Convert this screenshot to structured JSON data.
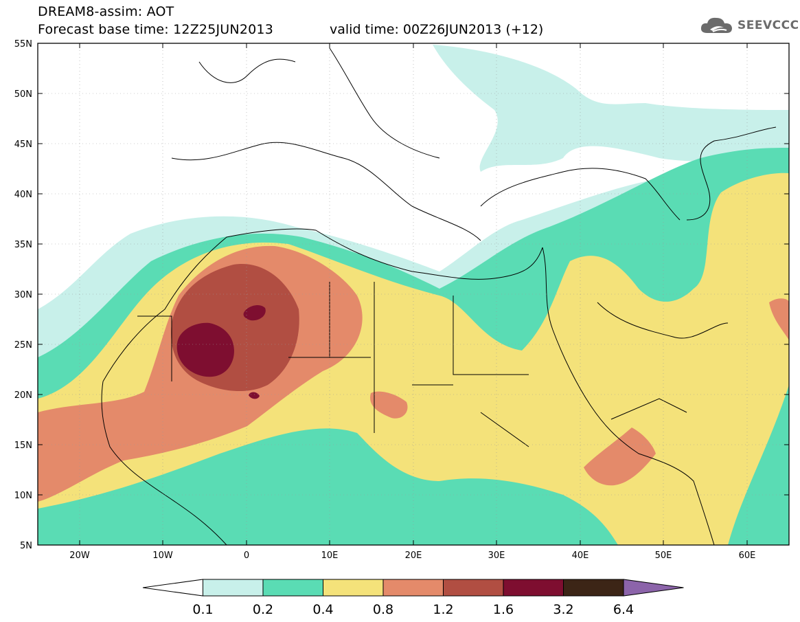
{
  "header": {
    "title": "DREAM8-assim: AOT",
    "base_time": "Forecast base time: 12Z25JUN2013",
    "valid_time": "valid time: 00Z26JUN2013 (+12)",
    "logo_text": "SEEVCCC"
  },
  "map": {
    "lon_labels": [
      "20W",
      "10W",
      "0",
      "10E",
      "20E",
      "30E",
      "40E",
      "50E",
      "60E"
    ],
    "lat_labels": [
      "55N",
      "50N",
      "45N",
      "40N",
      "35N",
      "30N",
      "25N",
      "20N",
      "15N",
      "10N",
      "5N"
    ]
  },
  "colorbar": {
    "labels": [
      "0.1",
      "0.2",
      "0.4",
      "0.8",
      "1.2",
      "1.6",
      "3.2",
      "6.4"
    ],
    "colors": [
      "#ffffff",
      "#c8f0ea",
      "#5adcb4",
      "#f4e27a",
      "#e48a6a",
      "#b14e42",
      "#7e0e30",
      "#3c2516",
      "#8c64aa"
    ]
  }
}
